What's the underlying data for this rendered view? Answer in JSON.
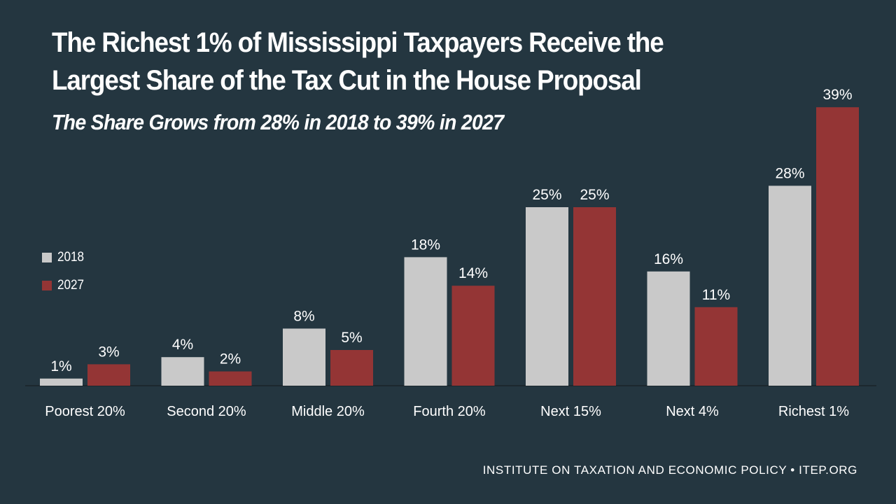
{
  "chart_data": {
    "type": "bar",
    "title": "The Richest 1% of Mississippi Taxpayers Receive the Largest Share of the Tax Cut in the House Proposal",
    "subtitle": "The Share Grows from 28% in 2018 to 39% in 2027",
    "categories": [
      "Poorest 20%",
      "Second 20%",
      "Middle 20%",
      "Fourth 20%",
      "Next 15%",
      "Next 4%",
      "Richest 1%"
    ],
    "series": [
      {
        "name": "2018",
        "color": "#c9c9c9",
        "values": [
          1,
          4,
          8,
          18,
          25,
          16,
          28
        ],
        "labels": [
          "1%",
          "4%",
          "8%",
          "18%",
          "25%",
          "16%",
          "28%"
        ]
      },
      {
        "name": "2027",
        "color": "#943535",
        "values": [
          3,
          2,
          5,
          14,
          25,
          11,
          39
        ],
        "labels": [
          "3%",
          "2%",
          "5%",
          "14%",
          "25%",
          "11%",
          "39%"
        ]
      }
    ],
    "ylim": [
      0,
      40
    ],
    "grid": false,
    "legend_position": "left"
  },
  "footer": "INSTITUTE ON TAXATION AND ECONOMIC POLICY • ITEP.ORG"
}
